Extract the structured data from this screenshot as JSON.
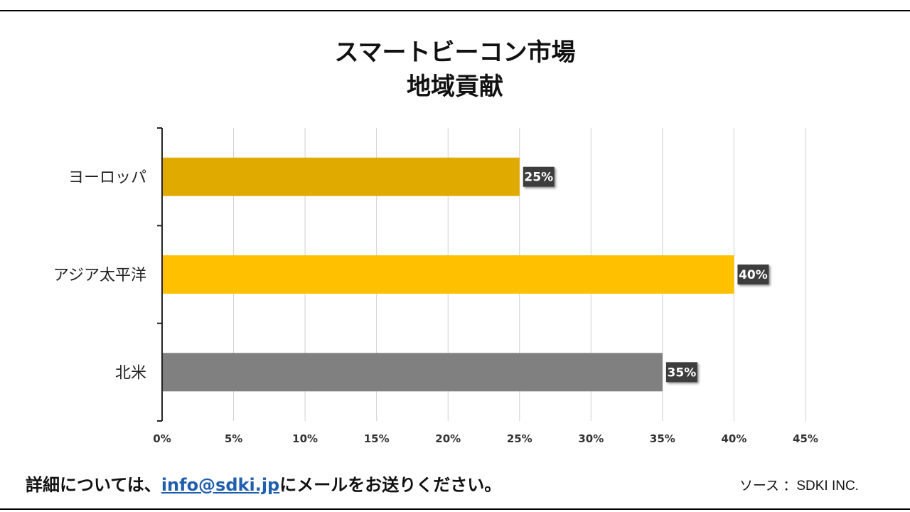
{
  "chart_data": {
    "type": "bar",
    "orientation": "horizontal",
    "title": "スマートビーコン市場",
    "subtitle": "地域貢献",
    "categories": [
      "ヨーロッパ",
      "アジア太平洋",
      "北米"
    ],
    "values": [
      25,
      40,
      35
    ],
    "data_labels": [
      "25%",
      "40%",
      "35%"
    ],
    "colors": [
      "#E0AA00",
      "#FFC000",
      "#808080"
    ],
    "xlim": [
      0,
      45
    ],
    "x_ticks": [
      0,
      5,
      10,
      15,
      20,
      25,
      30,
      35,
      40,
      45
    ],
    "x_tick_labels": [
      "0%",
      "5%",
      "10%",
      "15%",
      "20%",
      "25%",
      "30%",
      "35%",
      "40%",
      "45%"
    ],
    "grid": true
  },
  "footer": {
    "prefix": "詳細については、",
    "email": "info@sdki.jp",
    "suffix": "にメールをお送りください。",
    "source": "ソース ：SDKI INC."
  }
}
